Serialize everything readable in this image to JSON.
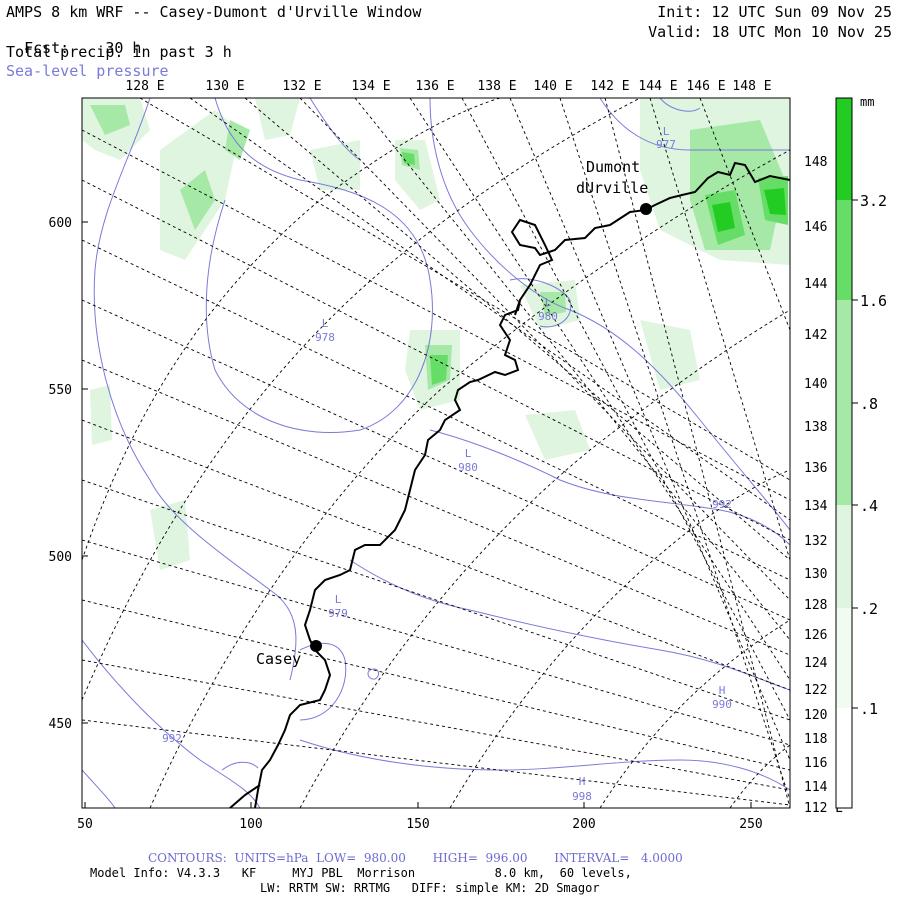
{
  "header": {
    "title": "AMPS 8 km WRF -- Casey-Dumont d'Urville Window",
    "fcst_label": "Fcst:",
    "fcst_value": "30 h",
    "field_line": "Total precip. in past 3 h",
    "overlay_line": "Sea-level pressure",
    "init_line": "Init: 12 UTC Sun 09 Nov 25",
    "valid_line": "Valid: 18 UTC Mon 10 Nov 25"
  },
  "colors": {
    "contour": "#7a7ad8",
    "grid": "#000000",
    "coast": "#000000",
    "precip_light": "#dff5df",
    "precip_mid": "#a6e8a6",
    "precip_strong": "#66dd66",
    "precip_max": "#22cc22"
  },
  "top_axis_labels": [
    "128 E",
    "130 E",
    "132 E",
    "134 E",
    "136 E",
    "138 E",
    "140 E",
    "142 E",
    "144 E",
    "146 E",
    "148 E"
  ],
  "right_axis_labels": [
    "148 E",
    "146 E",
    "144 E",
    "142 E",
    "140 E",
    "138 E",
    "136 E",
    "134 E",
    "132 E",
    "130 E",
    "128 E",
    "126 E",
    "124 E",
    "122 E",
    "120 E",
    "118 E",
    "116 E",
    "114 E",
    "112 E"
  ],
  "left_axis_labels": [
    "600",
    "550",
    "500",
    "450"
  ],
  "bottom_axis_labels": [
    "50",
    "100",
    "150",
    "200",
    "250"
  ],
  "stations": [
    {
      "name": "Casey",
      "label_text": "Casey"
    },
    {
      "name": "Dumont d'Urville",
      "label_line1": "Dumont",
      "label_line2": "dUrville"
    }
  ],
  "pressure_centers": [
    {
      "type": "L",
      "value": "977"
    },
    {
      "type": "L",
      "value": "980"
    },
    {
      "type": "L",
      "value": "978"
    },
    {
      "type": "L",
      "value": "980"
    },
    {
      "type": "L",
      "value": "979"
    },
    {
      "type": "H",
      "value": "990"
    },
    {
      "type": "H",
      "value": "998"
    }
  ],
  "contour_labels": [
    "992",
    "992"
  ],
  "colorbar": {
    "unit": "mm",
    "labels": [
      "3.2",
      "1.6",
      ".8",
      ".4",
      ".2",
      ".1"
    ]
  },
  "footer": {
    "contours_line": "CONTOURS:  UNITS=hPa  LOW=  980.00       HIGH=  996.00       INTERVAL=   4.0000",
    "model_line": "Model Info: V4.3.3   KF     MYJ PBL  Morrison           8.0 km,  60 levels,",
    "physics_line": "LW: RRTM SW: RRTMG   DIFF: simple KM: 2D Smagor"
  }
}
